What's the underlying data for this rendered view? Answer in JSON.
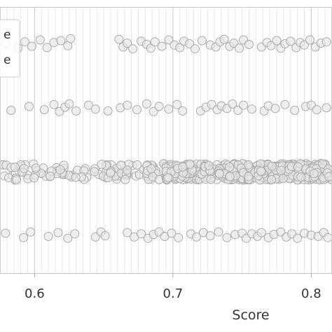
{
  "chart_data": {
    "type": "scatter",
    "title": "",
    "xlabel": "Score",
    "ylabel": "",
    "xlim": [
      0.575,
      0.815
    ],
    "ylim": [
      -0.6,
      3.6
    ],
    "x_ticks": [
      0.6,
      0.7,
      0.8
    ],
    "x_tick_labels": [
      "0.6",
      "0.7",
      "0.8"
    ],
    "grid": "vertical",
    "legend": {
      "placement": "top-left",
      "entries": [
        "e",
        "e"
      ],
      "note": "legend labels are cropped at the left edge; only their final letter is visible"
    },
    "point_style": {
      "fill": "#e6e6e6",
      "edge": "#aaaaaa",
      "alpha": 0.65
    },
    "series": [
      {
        "row": 3,
        "x": [
          0.579,
          0.588,
          0.593,
          0.598,
          0.604,
          0.609,
          0.614,
          0.619,
          0.624,
          0.626,
          0.661,
          0.664,
          0.667,
          0.671,
          0.677,
          0.681,
          0.684,
          0.687,
          0.692,
          0.697,
          0.701,
          0.705,
          0.708,
          0.712,
          0.716,
          0.721,
          0.727,
          0.731,
          0.734,
          0.737,
          0.741,
          0.744,
          0.748,
          0.751,
          0.755,
          0.764,
          0.768,
          0.771,
          0.775,
          0.778,
          0.781,
          0.785,
          0.789,
          0.792,
          0.795,
          0.799,
          0.803,
          0.807,
          0.811
        ],
        "y": [
          3.02,
          2.95,
          3.05,
          2.98,
          3.08,
          2.96,
          3.04,
          3.07,
          2.99,
          3.1,
          3.09,
          2.97,
          3.03,
          2.94,
          3.06,
          3.01,
          2.95,
          3.05,
          2.98,
          3.08,
          3.0,
          2.96,
          3.06,
          3.02,
          2.94,
          3.07,
          3.0,
          2.97,
          3.05,
          3.09,
          2.98,
          3.03,
          2.95,
          3.08,
          3.01,
          2.97,
          3.04,
          2.99,
          3.07,
          2.95,
          3.02,
          3.06,
          2.96,
          3.04,
          3.0,
          3.08,
          2.97,
          3.03,
          3.05
        ]
      },
      {
        "row": 2,
        "x": [
          0.583,
          0.596,
          0.607,
          0.614,
          0.618,
          0.622,
          0.625,
          0.63,
          0.639,
          0.644,
          0.653,
          0.662,
          0.667,
          0.674,
          0.681,
          0.686,
          0.69,
          0.697,
          0.703,
          0.707,
          0.72,
          0.724,
          0.728,
          0.732,
          0.735,
          0.739,
          0.743,
          0.747,
          0.751,
          0.757,
          0.766,
          0.769,
          0.774,
          0.781,
          0.788,
          0.796,
          0.8,
          0.804,
          0.811
        ],
        "y": [
          1.97,
          2.03,
          1.98,
          2.06,
          1.95,
          2.02,
          2.07,
          1.96,
          2.05,
          1.99,
          1.96,
          2.01,
          2.05,
          1.98,
          2.07,
          1.95,
          2.03,
          1.99,
          2.06,
          1.96,
          1.96,
          2.02,
          2.06,
          1.98,
          2.04,
          2.0,
          2.07,
          1.97,
          2.05,
          1.99,
          1.96,
          2.04,
          2.0,
          2.06,
          1.97,
          2.03,
          2.05,
          1.98,
          2.01
        ]
      },
      {
        "row": 1,
        "dense": true,
        "x_min": 0.577,
        "x_max": 0.815,
        "dense_from": 0.695,
        "y_spread": 0.13
      },
      {
        "row": 0,
        "x": [
          0.579,
          0.592,
          0.597,
          0.61,
          0.617,
          0.624,
          0.629,
          0.644,
          0.648,
          0.651,
          0.667,
          0.672,
          0.677,
          0.682,
          0.686,
          0.69,
          0.694,
          0.699,
          0.704,
          0.713,
          0.717,
          0.722,
          0.727,
          0.733,
          0.739,
          0.745,
          0.75,
          0.753,
          0.757,
          0.761,
          0.764,
          0.769,
          0.773,
          0.778,
          0.782,
          0.786,
          0.79,
          0.795,
          0.8,
          0.805,
          0.809,
          0.812
        ],
        "y": [
          0.03,
          -0.04,
          0.05,
          -0.02,
          0.04,
          -0.05,
          0.02,
          -0.03,
          0.05,
          -0.01,
          0.04,
          -0.03,
          0.02,
          -0.05,
          0.01,
          0.05,
          -0.02,
          0.03,
          -0.04,
          0.02,
          -0.03,
          0.04,
          -0.01,
          0.05,
          -0.04,
          0.01,
          0.03,
          -0.05,
          0.02,
          -0.02,
          0.04,
          -0.04,
          0.01,
          0.05,
          -0.03,
          0.02,
          -0.05,
          0.03,
          0.0,
          -0.02,
          0.04,
          -0.04
        ]
      }
    ]
  }
}
